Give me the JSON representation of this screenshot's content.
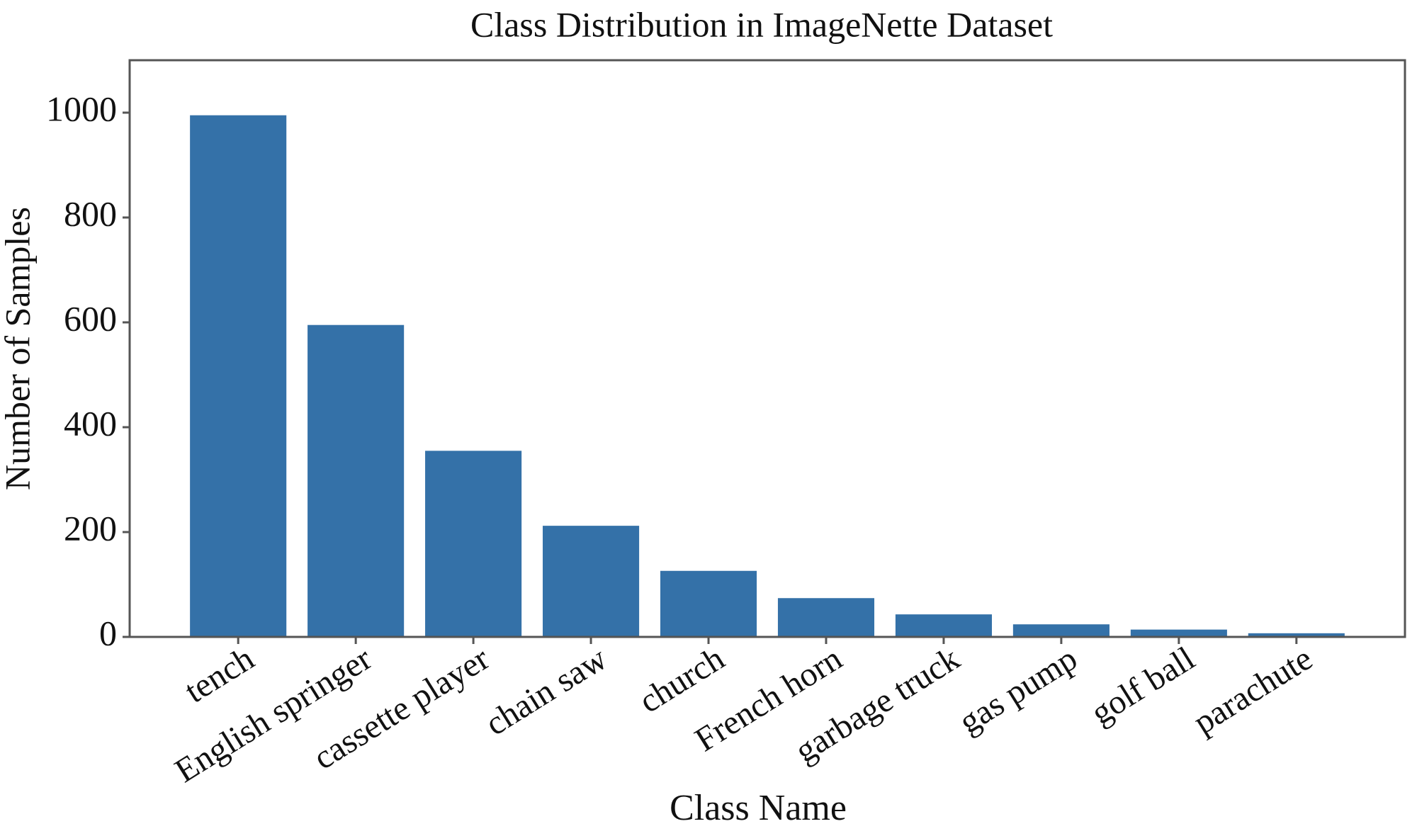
{
  "chart_data": {
    "type": "bar",
    "title": "Class Distribution in ImageNette Dataset",
    "x_label": "Class Name",
    "y_label": "Number of Samples",
    "categories": [
      "tench",
      "English springer",
      "cassette player",
      "chain saw",
      "church",
      "French horn",
      "garbage truck",
      "gas pump",
      "golf ball",
      "parachute"
    ],
    "values": [
      995,
      595,
      355,
      212,
      126,
      74,
      43,
      24,
      14,
      7
    ],
    "color": "#3471a8",
    "ylim": [
      0,
      1100
    ],
    "yticks": [
      0,
      200,
      400,
      600,
      800,
      1000
    ],
    "grid": false
  }
}
